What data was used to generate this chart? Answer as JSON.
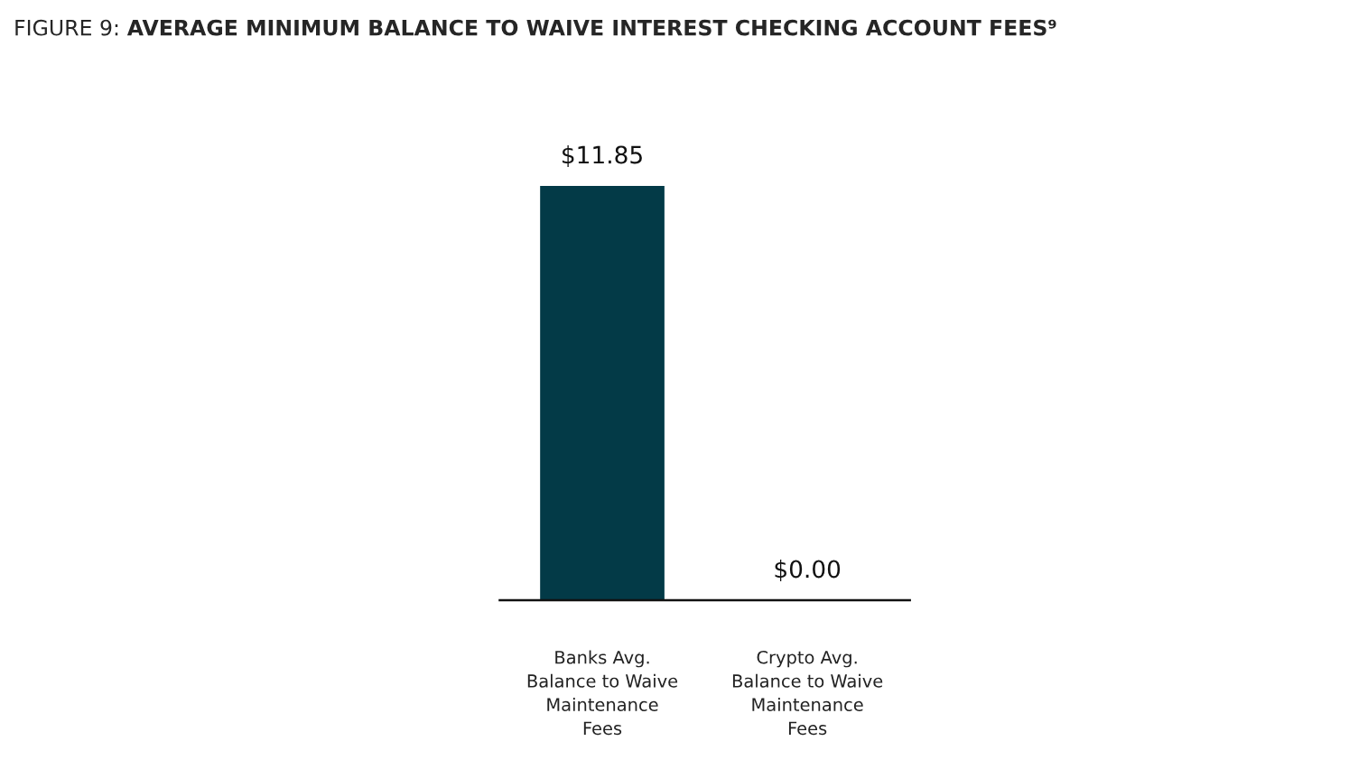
{
  "chart_data": {
    "type": "bar",
    "title": "FIGURE 9: AVERAGE MINIMUM BALANCE TO WAIVE INTEREST CHECKING ACCOUNT FEES⁹",
    "categories": [
      "Banks Avg.\nBalance to Waive\nMaintenance\nFees",
      "Crypto Avg.\nBalance to Waive\nMaintenance\nFees"
    ],
    "values": [
      11.85,
      0
    ],
    "value_labels": [
      "$11.85",
      "$0.00"
    ],
    "color": "#033a47",
    "ylim": [
      0,
      11.85
    ],
    "grid": false,
    "legend": false
  }
}
